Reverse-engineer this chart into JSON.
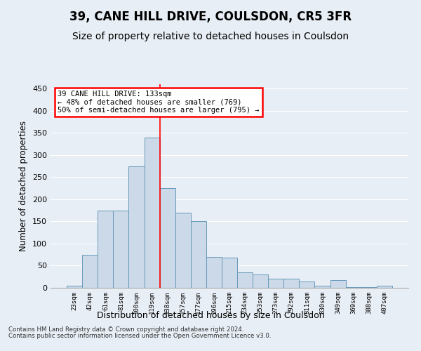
{
  "title": "39, CANE HILL DRIVE, COULSDON, CR5 3FR",
  "subtitle": "Size of property relative to detached houses in Coulsdon",
  "xlabel": "Distribution of detached houses by size in Coulsdon",
  "ylabel": "Number of detached properties",
  "bar_color": "#ccd9e8",
  "bar_edge_color": "#6699bb",
  "categories": [
    "23sqm",
    "42sqm",
    "61sqm",
    "81sqm",
    "100sqm",
    "119sqm",
    "138sqm",
    "157sqm",
    "177sqm",
    "196sqm",
    "215sqm",
    "234sqm",
    "253sqm",
    "273sqm",
    "292sqm",
    "311sqm",
    "330sqm",
    "349sqm",
    "369sqm",
    "388sqm",
    "407sqm"
  ],
  "values": [
    5,
    75,
    175,
    175,
    275,
    340,
    225,
    170,
    150,
    70,
    68,
    35,
    30,
    20,
    20,
    15,
    5,
    18,
    2,
    2,
    5
  ],
  "ylim": [
    0,
    460
  ],
  "yticks": [
    0,
    50,
    100,
    150,
    200,
    250,
    300,
    350,
    400,
    450
  ],
  "annotation_text": "39 CANE HILL DRIVE: 133sqm\n← 48% of detached houses are smaller (769)\n50% of semi-detached houses are larger (795) →",
  "vline_x_index": 5.5,
  "footer1": "Contains HM Land Registry data © Crown copyright and database right 2024.",
  "footer2": "Contains public sector information licensed under the Open Government Licence v3.0.",
  "background_color": "#e8eef5",
  "grid_color": "#ffffff",
  "title_fontsize": 12,
  "subtitle_fontsize": 10
}
